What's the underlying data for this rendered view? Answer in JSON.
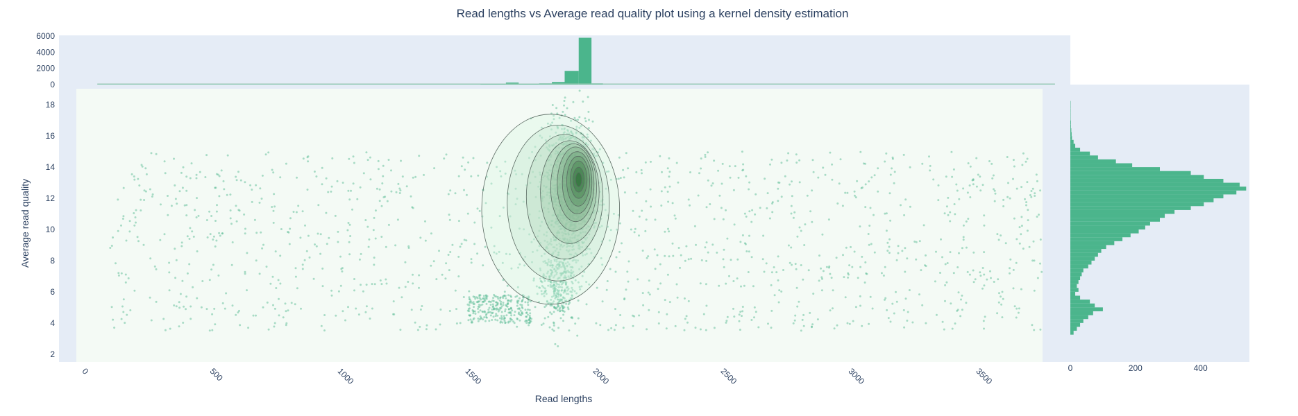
{
  "chart_data": {
    "type": "scatter",
    "title": "Read lengths vs Average read quality plot using a kernel density estimation",
    "xlabel": "Read lengths",
    "ylabel": "Average read quality",
    "xlim": [
      -100,
      3860
    ],
    "ylim": [
      1.5,
      19.3
    ],
    "x_ticks": [
      0,
      500,
      1000,
      1500,
      2000,
      2500,
      3000,
      3500
    ],
    "y_ticks": [
      2,
      4,
      6,
      8,
      10,
      12,
      14,
      16,
      18
    ],
    "grid": false,
    "colors": {
      "marker": "#4bb58c",
      "contour": "#5a6a62",
      "kde_fill": "#eef5f0",
      "plot_bg": "#e5ecf6",
      "text": "#2a3f5f"
    },
    "point_clusters": [
      {
        "x_range": [
          100,
          3800
        ],
        "y_range": [
          3.5,
          15
        ],
        "count": 1300
      },
      {
        "x_range": [
          1500,
          1750
        ],
        "y_range": [
          4,
          5.8
        ],
        "count": 260
      },
      {
        "x_center": 1900,
        "x_spread": 45,
        "y_center": 12.5,
        "y_spread": 2.2,
        "count": 1400
      },
      {
        "x_center": 1850,
        "x_spread": 35,
        "y_center": 6.5,
        "y_spread": 1.3,
        "count": 300
      }
    ],
    "kde_contours": {
      "x_center": 1935,
      "y_center": 13.2,
      "levels": [
        {
          "rx": 270,
          "ry": 6.1,
          "dx": -110,
          "dy": -1.9
        },
        {
          "rx": 200,
          "ry": 5.0,
          "dx": -80,
          "dy": -1.5
        },
        {
          "rx": 150,
          "ry": 4.0,
          "dx": -55,
          "dy": -1.1
        },
        {
          "rx": 115,
          "ry": 3.3,
          "dx": -35,
          "dy": -0.8
        },
        {
          "rx": 90,
          "ry": 2.8,
          "dx": -20,
          "dy": -0.5
        },
        {
          "rx": 72,
          "ry": 2.4,
          "dx": -12,
          "dy": -0.3
        },
        {
          "rx": 58,
          "ry": 2.0,
          "dx": -6,
          "dy": -0.2
        },
        {
          "rx": 45,
          "ry": 1.6,
          "dx": -2,
          "dy": -0.1
        },
        {
          "rx": 33,
          "ry": 1.2,
          "dx": 0,
          "dy": 0
        },
        {
          "rx": 22,
          "ry": 0.8,
          "dx": 0,
          "dy": 0
        },
        {
          "rx": 12,
          "ry": 0.45,
          "dx": 0,
          "dy": 0
        }
      ]
    },
    "x_histogram": {
      "ylim": [
        0,
        6100
      ],
      "y_ticks": [
        0,
        2000,
        4000,
        6000
      ],
      "bins": [
        {
          "x0": 50,
          "x1": 1550,
          "count": 30
        },
        {
          "x0": 1550,
          "x1": 1650,
          "count": 120
        },
        {
          "x0": 1650,
          "x1": 1700,
          "count": 250
        },
        {
          "x0": 1700,
          "x1": 1780,
          "count": 100
        },
        {
          "x0": 1780,
          "x1": 1830,
          "count": 150
        },
        {
          "x0": 1830,
          "x1": 1880,
          "count": 320
        },
        {
          "x0": 1880,
          "x1": 1935,
          "count": 1700
        },
        {
          "x0": 1935,
          "x1": 1985,
          "count": 5800
        },
        {
          "x0": 1985,
          "x1": 2030,
          "count": 150
        },
        {
          "x0": 2030,
          "x1": 3800,
          "count": 25
        }
      ]
    },
    "y_histogram": {
      "xlim": [
        0,
        550
      ],
      "x_ticks": [
        0,
        200,
        400
      ],
      "bin_width": 0.25,
      "y_start": 3.25,
      "counts": [
        10,
        20,
        30,
        40,
        55,
        70,
        100,
        75,
        60,
        30,
        15,
        25,
        20,
        25,
        30,
        35,
        40,
        55,
        65,
        75,
        85,
        95,
        110,
        135,
        160,
        185,
        210,
        230,
        245,
        275,
        290,
        320,
        370,
        410,
        440,
        470,
        510,
        540,
        520,
        470,
        410,
        370,
        275,
        190,
        140,
        85,
        60,
        30,
        15,
        10,
        5,
        4,
        3,
        2,
        2,
        1,
        1,
        1,
        1,
        1
      ]
    }
  }
}
